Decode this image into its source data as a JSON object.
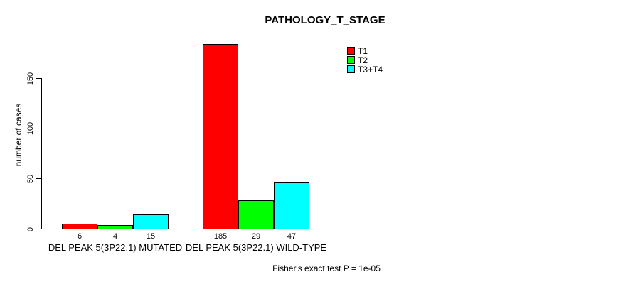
{
  "title": "PATHOLOGY_T_STAGE",
  "y_axis": {
    "label": "number of cases"
  },
  "footer": "Fisher's exact test P = 1e-05",
  "colors": {
    "t1": "#FF0000",
    "t2": "#00FF00",
    "t3_t4": "#00FFFF",
    "axis": "#000000",
    "background": "#FFFFFF"
  },
  "chart_data": {
    "type": "bar",
    "title": "PATHOLOGY_T_STAGE",
    "categories": [
      "DEL PEAK 5(3P22.1) MUTATED",
      "DEL PEAK 5(3P22.1) WILD-TYPE"
    ],
    "series": [
      {
        "name": "T1",
        "color": "#FF0000",
        "values": [
          6,
          185
        ]
      },
      {
        "name": "T2",
        "color": "#00FF00",
        "values": [
          4,
          29
        ]
      },
      {
        "name": "T3+T4",
        "color": "#00FFFF",
        "values": [
          15,
          47
        ]
      }
    ],
    "xlabel": "",
    "ylabel": "number of cases",
    "ylim": [
      0,
      150
    ],
    "yticks": [
      0,
      50,
      100,
      150
    ],
    "grid": false,
    "legend_position": "top-right",
    "bar_value_labels": [
      [
        6,
        4,
        15
      ],
      [
        185,
        29,
        47
      ]
    ],
    "annotation": "Fisher's exact test P = 1e-05"
  }
}
